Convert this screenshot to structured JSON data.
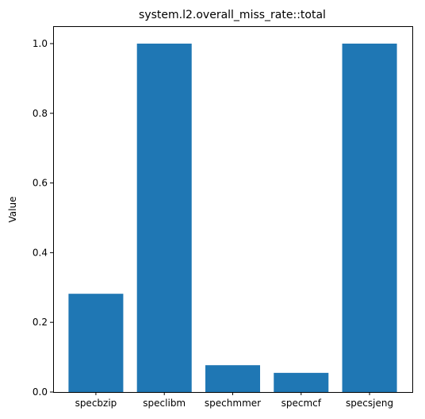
{
  "chart_data": {
    "type": "bar",
    "title": "system.l2.overall_miss_rate::total",
    "xlabel": "",
    "ylabel": "Value",
    "categories": [
      "specbzip",
      "speclibm",
      "spechmmer",
      "specmcf",
      "specsjeng"
    ],
    "values": [
      0.282,
      1.0,
      0.077,
      0.055,
      1.0
    ],
    "ylim": [
      0,
      1.05
    ],
    "yticks": [
      "0.0",
      "0.2",
      "0.4",
      "0.6",
      "0.8",
      "1.0"
    ],
    "bar_color": "#1f77b4",
    "grid": false,
    "legend": "none"
  }
}
